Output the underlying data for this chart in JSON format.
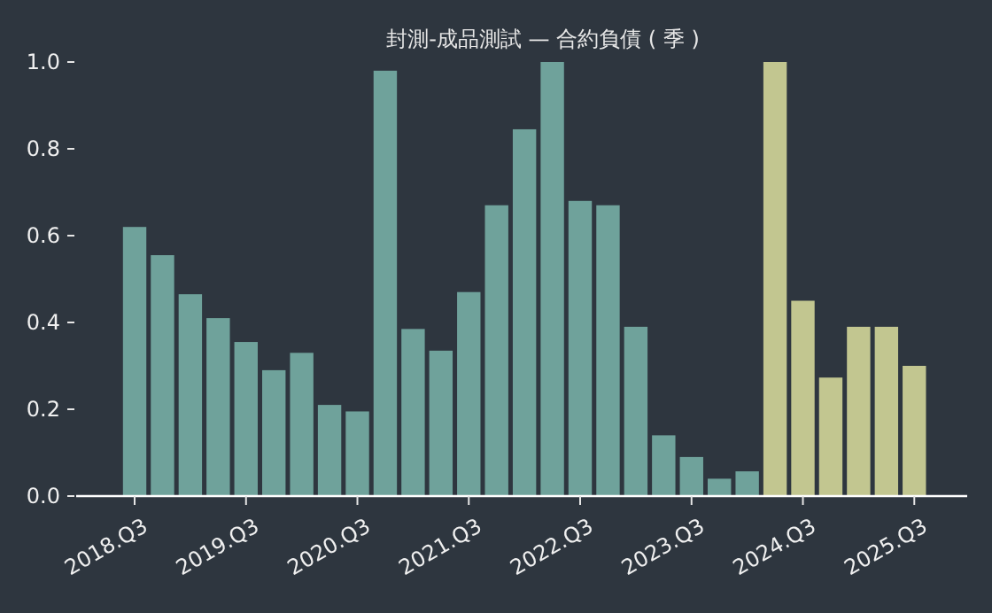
{
  "chart_data": {
    "type": "bar",
    "title": "封測-成品測試 — 合約負債 ( 季 )",
    "categories": [
      "2018.Q3",
      null,
      null,
      null,
      "2019.Q3",
      null,
      null,
      null,
      "2020.Q3",
      null,
      null,
      null,
      "2021.Q3",
      null,
      null,
      null,
      "2022.Q3",
      null,
      null,
      null,
      "2023.Q3",
      null,
      null,
      null,
      "2024.Q3",
      null,
      null,
      null,
      "2025.Q3"
    ],
    "values": [
      0.62,
      0.555,
      0.465,
      0.41,
      0.355,
      0.29,
      0.33,
      0.21,
      0.195,
      0.98,
      0.385,
      0.335,
      0.47,
      0.67,
      0.845,
      1.0,
      0.68,
      0.67,
      0.39,
      0.14,
      0.09,
      0.04,
      0.057,
      1.0,
      0.45,
      0.273,
      0.39,
      0.39,
      0.3
    ],
    "colors": [
      "#6fa29b",
      "#6fa29b",
      "#6fa29b",
      "#6fa29b",
      "#6fa29b",
      "#6fa29b",
      "#6fa29b",
      "#6fa29b",
      "#6fa29b",
      "#6fa29b",
      "#6fa29b",
      "#6fa29b",
      "#6fa29b",
      "#6fa29b",
      "#6fa29b",
      "#6fa29b",
      "#6fa29b",
      "#6fa29b",
      "#6fa29b",
      "#6fa29b",
      "#6fa29b",
      "#6fa29b",
      "#6fa29b",
      "#c2c690",
      "#c2c690",
      "#c2c690",
      "#c2c690",
      "#c2c690",
      "#c2c690"
    ],
    "ylim": [
      0,
      1.0
    ],
    "yticks": [
      {
        "value": 0,
        "label": "0.0"
      },
      {
        "value": 0.2,
        "label": "0.2"
      },
      {
        "value": 0.4,
        "label": "0.4"
      },
      {
        "value": 0.6,
        "label": "0.6"
      },
      {
        "value": 0.8,
        "label": "0.8"
      },
      {
        "value": 1.0,
        "label": "1.0"
      }
    ],
    "grid": false
  }
}
